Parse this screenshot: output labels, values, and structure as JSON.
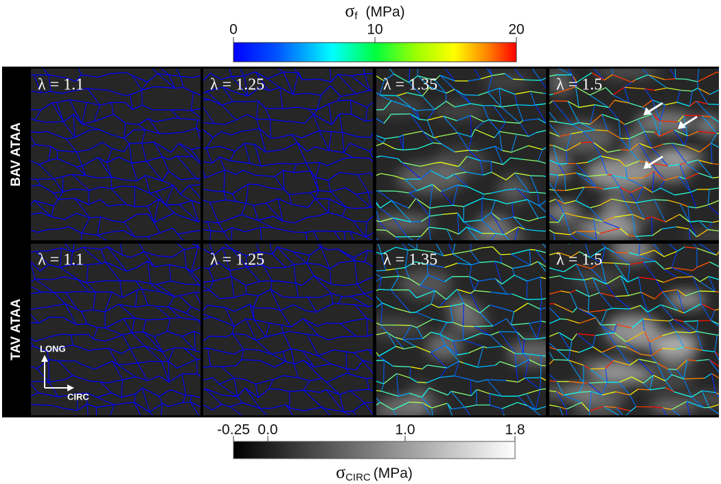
{
  "top_colorbar": {
    "symbol": "σ",
    "subscript": "f",
    "unit": "(MPa)",
    "lim": [
      0,
      20
    ],
    "ticks": [
      0,
      10,
      20
    ]
  },
  "bottom_colorbar": {
    "symbol": "σ",
    "subscript": "CIRC",
    "unit": "(MPa)",
    "lim": [
      -0.25,
      1.8
    ],
    "ticks": [
      -0.25,
      {
        "value": 0,
        "label": "0.0"
      },
      {
        "value": 1,
        "label": "1.0"
      },
      1.8
    ]
  },
  "rows": [
    {
      "label": "BAV ATAA",
      "panels": [
        "λ = 1.1",
        "λ = 1.25",
        "λ = 1.35",
        "λ = 1.5"
      ]
    },
    {
      "label": "TAV ATAA",
      "panels": [
        "λ = 1.1",
        "λ = 1.25",
        "λ = 1.35",
        "λ = 1.5"
      ]
    }
  ],
  "axes_indicator": {
    "vertical": "LONG",
    "horizontal": "CIRC"
  }
}
